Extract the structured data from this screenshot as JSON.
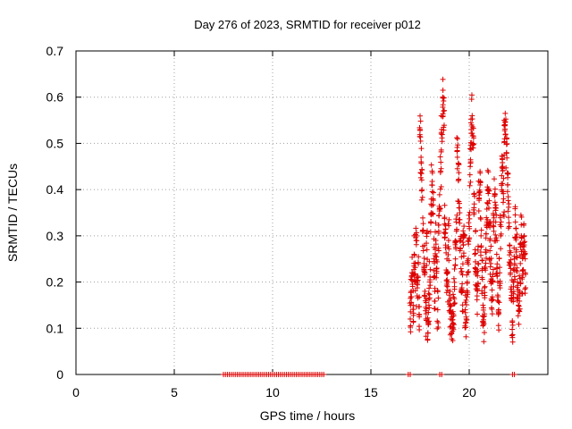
{
  "chart_data": {
    "type": "scatter",
    "title": "Day 276 of 2023, SRMTID for receiver p012",
    "xlabel": "GPS time / hours",
    "ylabel": "SRMTID / TECUs",
    "xlim": [
      0,
      24
    ],
    "ylim": [
      0,
      0.7
    ],
    "xticks": [
      0,
      5,
      10,
      15,
      20
    ],
    "yticks": [
      0,
      0.1,
      0.2,
      0.3,
      0.4,
      0.5,
      0.6,
      0.7
    ],
    "xtick_labels": [
      "0",
      "5",
      "10",
      "15",
      "20"
    ],
    "ytick_labels": [
      "0",
      "0.1",
      "0.2",
      "0.3",
      "0.4",
      "0.5",
      "0.6",
      "0.7"
    ],
    "grid": true,
    "marker": "+",
    "series": [
      {
        "name": "SRMTID",
        "color": "#dd0000",
        "zero_ranges": [
          [
            7.5,
            12.6
          ],
          [
            16.9,
            17.0
          ],
          [
            18.5,
            18.6
          ],
          [
            22.2,
            22.3
          ]
        ],
        "points": [
          [
            17.0,
            0.12
          ],
          [
            17.05,
            0.18
          ],
          [
            17.1,
            0.22
          ],
          [
            17.15,
            0.15
          ],
          [
            17.2,
            0.26
          ],
          [
            17.25,
            0.2
          ],
          [
            17.3,
            0.29
          ],
          [
            17.35,
            0.17
          ],
          [
            17.4,
            0.21
          ],
          [
            17.45,
            0.13
          ],
          [
            17.5,
            0.53
          ],
          [
            17.55,
            0.47
          ],
          [
            17.6,
            0.4
          ],
          [
            17.65,
            0.31
          ],
          [
            17.7,
            0.24
          ],
          [
            17.75,
            0.18
          ],
          [
            17.8,
            0.12
          ],
          [
            17.85,
            0.27
          ],
          [
            17.9,
            0.09
          ],
          [
            17.95,
            0.15
          ],
          [
            18.0,
            0.2
          ],
          [
            18.05,
            0.33
          ],
          [
            18.1,
            0.41
          ],
          [
            18.15,
            0.38
          ],
          [
            18.2,
            0.25
          ],
          [
            18.25,
            0.18
          ],
          [
            18.3,
            0.29
          ],
          [
            18.35,
            0.23
          ],
          [
            18.4,
            0.14
          ],
          [
            18.45,
            0.31
          ],
          [
            18.5,
            0.36
          ],
          [
            18.55,
            0.44
          ],
          [
            18.6,
            0.53
          ],
          [
            18.65,
            0.6
          ],
          [
            18.7,
            0.57
          ],
          [
            18.75,
            0.34
          ],
          [
            18.8,
            0.28
          ],
          [
            18.85,
            0.22
          ],
          [
            18.9,
            0.19
          ],
          [
            18.95,
            0.29
          ],
          [
            19.0,
            0.16
          ],
          [
            19.05,
            0.12
          ],
          [
            19.1,
            0.09
          ],
          [
            19.15,
            0.1
          ],
          [
            19.2,
            0.13
          ],
          [
            19.25,
            0.19
          ],
          [
            19.3,
            0.25
          ],
          [
            19.35,
            0.31
          ],
          [
            19.4,
            0.47
          ],
          [
            19.45,
            0.42
          ],
          [
            19.5,
            0.37
          ],
          [
            19.55,
            0.29
          ],
          [
            19.6,
            0.22
          ],
          [
            19.65,
            0.18
          ],
          [
            19.7,
            0.28
          ],
          [
            19.75,
            0.3
          ],
          [
            19.8,
            0.14
          ],
          [
            19.85,
            0.12
          ],
          [
            19.9,
            0.2
          ],
          [
            19.95,
            0.25
          ],
          [
            20.0,
            0.32
          ],
          [
            20.05,
            0.45
          ],
          [
            20.1,
            0.53
          ],
          [
            20.15,
            0.56
          ],
          [
            20.2,
            0.49
          ],
          [
            20.25,
            0.35
          ],
          [
            20.3,
            0.27
          ],
          [
            20.35,
            0.22
          ],
          [
            20.4,
            0.17
          ],
          [
            20.45,
            0.24
          ],
          [
            20.5,
            0.38
          ],
          [
            20.55,
            0.41
          ],
          [
            20.6,
            0.3
          ],
          [
            20.65,
            0.21
          ],
          [
            20.7,
            0.15
          ],
          [
            20.75,
            0.11
          ],
          [
            20.8,
            0.19
          ],
          [
            20.85,
            0.27
          ],
          [
            20.9,
            0.33
          ],
          [
            20.95,
            0.4
          ],
          [
            21.0,
            0.36
          ],
          [
            21.05,
            0.29
          ],
          [
            21.1,
            0.24
          ],
          [
            21.15,
            0.16
          ],
          [
            21.2,
            0.2
          ],
          [
            21.25,
            0.31
          ],
          [
            21.3,
            0.39
          ],
          [
            21.35,
            0.33
          ],
          [
            21.4,
            0.26
          ],
          [
            21.45,
            0.2
          ],
          [
            21.5,
            0.14
          ],
          [
            21.55,
            0.22
          ],
          [
            21.6,
            0.3
          ],
          [
            21.65,
            0.43
          ],
          [
            21.7,
            0.45
          ],
          [
            21.75,
            0.38
          ],
          [
            21.8,
            0.51
          ],
          [
            21.85,
            0.52
          ],
          [
            21.9,
            0.48
          ],
          [
            21.95,
            0.41
          ],
          [
            22.0,
            0.34
          ],
          [
            22.05,
            0.28
          ],
          [
            22.1,
            0.22
          ],
          [
            22.15,
            0.16
          ],
          [
            22.2,
            0.08
          ],
          [
            22.25,
            0.19
          ],
          [
            22.3,
            0.25
          ],
          [
            22.35,
            0.33
          ],
          [
            22.4,
            0.27
          ],
          [
            22.45,
            0.2
          ],
          [
            22.5,
            0.15
          ],
          [
            22.55,
            0.18
          ],
          [
            22.6,
            0.24
          ],
          [
            22.65,
            0.3
          ],
          [
            22.7,
            0.21
          ],
          [
            22.75,
            0.26
          ],
          [
            22.8,
            0.3
          ],
          [
            22.85,
            0.22
          ]
        ]
      }
    ]
  }
}
